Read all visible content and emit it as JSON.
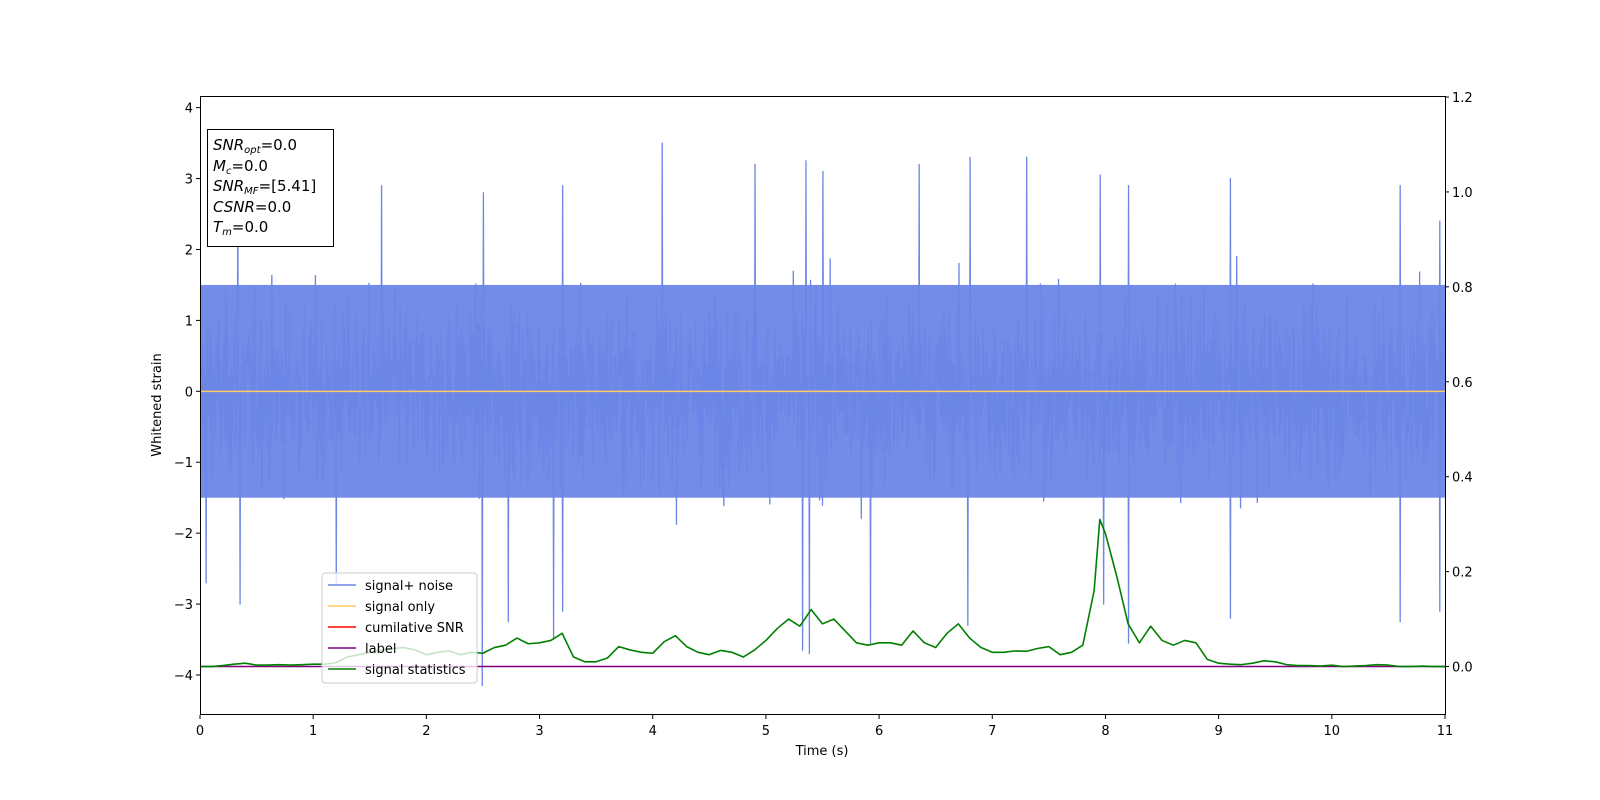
{
  "chart_data": {
    "type": "line",
    "xlabel": "Time (s)",
    "ylabel": "Whitened strain",
    "xlim": [
      0,
      11
    ],
    "ylim": [
      -4.55,
      4.15
    ],
    "y2lim": [
      -0.1,
      1.2
    ],
    "x_ticks": [
      "0",
      "1",
      "2",
      "3",
      "4",
      "5",
      "6",
      "7",
      "8",
      "9",
      "10",
      "11"
    ],
    "y_ticks": [
      "4",
      "3",
      "2",
      "1",
      "0",
      "−1",
      "−2",
      "−3",
      "−4"
    ],
    "y2_ticks": [
      "1.2",
      "1.0",
      "0.8",
      "0.6",
      "0.4",
      "0.2",
      "0.0"
    ],
    "legend": [
      "signal+ noise",
      "signal only",
      "cumilative SNR",
      "label",
      "signal statistics"
    ],
    "legend_position": "lower-left",
    "colors": {
      "signal_noise": "#6b86e6",
      "signal_only": "#ffc966",
      "cumulative_snr": "#ff0000",
      "label": "#800080",
      "signal_statistics": "#008000"
    },
    "noise_envelope": {
      "upper_typical": 1.5,
      "lower_typical": -1.5,
      "peak_x": [
        0.33,
        1.6,
        2.5,
        3.2,
        4.08,
        4.9,
        5.35,
        5.5,
        6.35,
        6.8,
        7.3,
        7.95,
        8.2,
        9.1,
        10.6,
        10.95
      ],
      "peak_y": [
        2.9,
        2.9,
        2.8,
        2.9,
        3.5,
        3.2,
        3.25,
        3.1,
        3.2,
        3.3,
        3.3,
        3.05,
        2.9,
        3.0,
        2.9,
        2.4
      ],
      "trough_x": [
        0.05,
        0.35,
        1.2,
        2.49,
        2.72,
        3.12,
        3.2,
        5.32,
        5.38,
        5.92,
        6.78,
        7.98,
        8.2,
        9.1,
        10.6,
        10.95
      ],
      "trough_y": [
        -2.7,
        -3.0,
        -2.7,
        -4.15,
        -3.25,
        -3.5,
        -3.1,
        -3.65,
        -3.7,
        -3.55,
        -3.3,
        -3.0,
        -3.55,
        -3.2,
        -3.25,
        -3.1
      ]
    },
    "signal_statistics": {
      "x": [
        0,
        0.1,
        0.2,
        0.3,
        0.4,
        0.5,
        0.6,
        0.7,
        0.8,
        0.9,
        1.0,
        1.1,
        1.2,
        1.3,
        1.4,
        1.5,
        1.6,
        1.7,
        1.8,
        1.9,
        2.0,
        2.1,
        2.2,
        2.3,
        2.4,
        2.5,
        2.6,
        2.7,
        2.8,
        2.9,
        3.0,
        3.1,
        3.2,
        3.3,
        3.4,
        3.5,
        3.6,
        3.7,
        3.8,
        3.9,
        4.0,
        4.1,
        4.2,
        4.3,
        4.4,
        4.5,
        4.6,
        4.7,
        4.8,
        4.9,
        5.0,
        5.1,
        5.2,
        5.3,
        5.4,
        5.5,
        5.6,
        5.7,
        5.8,
        5.9,
        6.0,
        6.1,
        6.2,
        6.3,
        6.4,
        6.5,
        6.6,
        6.7,
        6.8,
        6.9,
        7.0,
        7.1,
        7.2,
        7.3,
        7.4,
        7.5,
        7.6,
        7.7,
        7.8,
        7.9,
        7.95,
        8.0,
        8.1,
        8.2,
        8.3,
        8.4,
        8.5,
        8.6,
        8.7,
        8.8,
        8.9,
        9.0,
        9.1,
        9.2,
        9.3,
        9.4,
        9.5,
        9.6,
        9.7,
        9.8,
        9.9,
        10.0,
        10.1,
        10.2,
        10.3,
        10.4,
        10.5,
        10.6,
        10.7,
        10.8,
        10.9,
        11.0
      ],
      "y": [
        0.0,
        0.0,
        0.002,
        0.005,
        0.007,
        0.003,
        0.003,
        0.004,
        0.003,
        0.004,
        0.005,
        0.005,
        0.008,
        0.02,
        0.025,
        0.03,
        0.035,
        0.038,
        0.04,
        0.035,
        0.025,
        0.03,
        0.033,
        0.025,
        0.03,
        0.028,
        0.04,
        0.045,
        0.06,
        0.048,
        0.05,
        0.055,
        0.07,
        0.02,
        0.01,
        0.01,
        0.018,
        0.042,
        0.035,
        0.03,
        0.028,
        0.052,
        0.065,
        0.042,
        0.03,
        0.025,
        0.034,
        0.03,
        0.02,
        0.035,
        0.055,
        0.08,
        0.1,
        0.085,
        0.12,
        0.09,
        0.1,
        0.075,
        0.05,
        0.045,
        0.05,
        0.05,
        0.045,
        0.075,
        0.05,
        0.04,
        0.07,
        0.09,
        0.06,
        0.04,
        0.03,
        0.03,
        0.033,
        0.032,
        0.038,
        0.042,
        0.025,
        0.03,
        0.045,
        0.16,
        0.31,
        0.28,
        0.19,
        0.09,
        0.05,
        0.085,
        0.055,
        0.045,
        0.055,
        0.05,
        0.015,
        0.007,
        0.005,
        0.004,
        0.007,
        0.012,
        0.01,
        0.004,
        0.002,
        0.002,
        0.001,
        0.003,
        0.0,
        0.001,
        0.002,
        0.004,
        0.003,
        0.0,
        0.0,
        0.001,
        0.0,
        0.0
      ]
    },
    "signal_only": {
      "value": 0.0
    },
    "label": {
      "value": 0.0
    }
  },
  "info_box": {
    "snr_opt": {
      "base": "SNR",
      "sub": "opt",
      "value": "=0.0"
    },
    "mc": {
      "base": "M",
      "sub": "c",
      "value": "=0.0"
    },
    "snr_mf": {
      "base": "SNR",
      "sub": "MF",
      "value": "=[5.41]"
    },
    "csnr": {
      "base": "CSNR",
      "value": "=0.0"
    },
    "tm": {
      "base": "T",
      "sub": "m",
      "value": "=0.0"
    }
  }
}
